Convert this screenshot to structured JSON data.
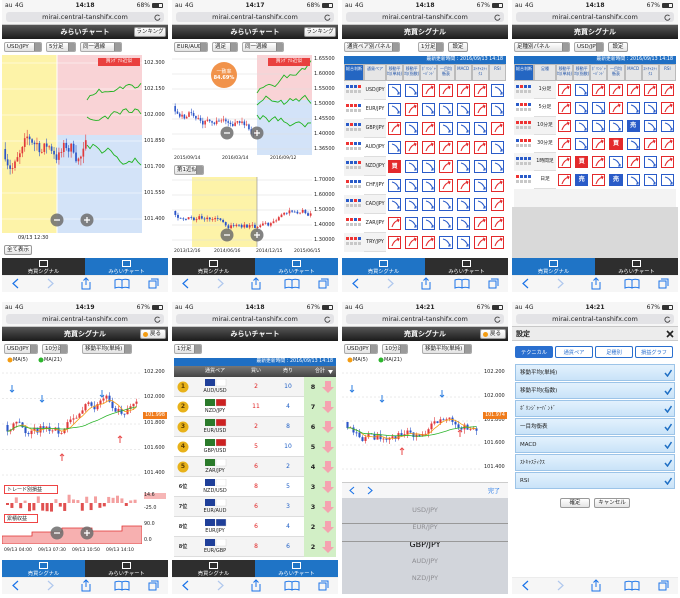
{
  "screens": [
    {
      "status": {
        "carrier": "au",
        "network": "4G",
        "time": "14:18",
        "battery": "68%"
      },
      "url": "mirai.central-tanshifx.com",
      "title": "みらいチャート",
      "button": "ランキング",
      "selects": [
        "USD/JPY",
        "5分足",
        "同一週線"
      ],
      "badge": "買ｼｸﾞﾅﾙ近似",
      "yticks": [
        "102.300",
        "102.150",
        "102.000",
        "101.850",
        "101.700",
        "101.550",
        "101.400"
      ],
      "time_label": "09/13 12:30",
      "show_all": "全て表示",
      "tabs": [
        "売買シグナル",
        "みらいチャート"
      ]
    },
    {
      "status": {
        "carrier": "au",
        "network": "4G",
        "time": "14:17",
        "battery": "68%"
      },
      "url": "mirai.central-tanshifx.com",
      "title": "みらいチャート",
      "button": "ランキング",
      "selects": [
        "EUR/AUD",
        "週足",
        "同一週線"
      ],
      "badge": "買ｼｸﾞﾅﾙ近似",
      "match": [
        "一致率",
        "84.69%"
      ],
      "yticks": [
        "1.65500",
        "1.60000",
        "1.55000",
        "1.50000",
        "1.45500",
        "1.40000",
        "1.36500"
      ],
      "xlabels": [
        "2015/09/14",
        "2016/03/14",
        "2016/09/12"
      ],
      "lower": {
        "select": "第1近似",
        "yticks": [
          "1.70000",
          "1.60000",
          "1.50000",
          "1.40000",
          "1.30000"
        ],
        "xlabels": [
          "2013/12/16",
          "2014/06/16",
          "2014/12/15",
          "2015/06/15"
        ]
      },
      "tabs": [
        "売買シグナル",
        "みらいチャート"
      ]
    },
    {
      "status": {
        "carrier": "au",
        "network": "4G",
        "time": "14:18",
        "battery": "67%"
      },
      "url": "mirai.central-tanshifx.com",
      "title": "売買シグナル",
      "selects": [
        "通貨ペア別パネル",
        "1分足"
      ],
      "settings": "設定",
      "updated": "最新更新時間：2016/09/13 14:18",
      "headers": [
        "総合判断",
        "通貨ペア",
        "移動平均(単純)",
        "移動平均(指数)",
        "ﾎﾞﾘﾝｼﾞｬｰﾊﾞﾝﾄﾞ",
        "一目均衡表",
        "MACD",
        "ｽﾄｷｬｽﾃｨｸｽ",
        "RSI"
      ],
      "rows": [
        {
          "pair": "USD/JPY",
          "cells": [
            null,
            null,
            null,
            null,
            null,
            null,
            null
          ]
        },
        {
          "pair": "EUR/JPY",
          "cells": [
            null,
            null,
            null,
            null,
            null,
            null,
            null
          ]
        },
        {
          "pair": "GBP/JPY",
          "cells": [
            null,
            null,
            null,
            null,
            null,
            null,
            null
          ]
        },
        {
          "pair": "AUD/JPY",
          "cells": [
            null,
            null,
            null,
            null,
            null,
            null,
            null
          ]
        },
        {
          "pair": "NZD/JPY",
          "cells": [
            "買",
            null,
            null,
            null,
            null,
            null,
            null
          ]
        },
        {
          "pair": "CHF/JPY",
          "cells": [
            null,
            null,
            null,
            null,
            null,
            null,
            null
          ]
        },
        {
          "pair": "CAD/JPY",
          "cells": [
            null,
            null,
            null,
            null,
            null,
            null,
            null
          ]
        },
        {
          "pair": "ZAR/JPY",
          "cells": [
            null,
            null,
            null,
            null,
            null,
            null,
            null
          ]
        },
        {
          "pair": "TRY/JPY",
          "cells": [
            null,
            null,
            null,
            null,
            null,
            null,
            null
          ]
        }
      ],
      "tabs": [
        "売買シグナル",
        "みらいチャート"
      ]
    },
    {
      "status": {
        "carrier": "au",
        "network": "4G",
        "time": "14:18",
        "battery": "67%"
      },
      "url": "mirai.central-tanshifx.com",
      "title": "売買シグナル",
      "selects": [
        "足種別パネル",
        "USD/JPY"
      ],
      "settings": "設定",
      "updated": "最新更新時間：2016/09/13 14:18",
      "headers": [
        "総合判断",
        "足種",
        "移動平均(単純)",
        "移動平均(指数)",
        "ﾎﾞﾘﾝｼﾞｬｰﾊﾞﾝﾄﾞ",
        "一目均衡表",
        "MACD",
        "ｽﾄｷｬｽﾃｨｸｽ",
        "RSI"
      ],
      "rows": [
        {
          "pair": "1分足",
          "cells": [
            null,
            null,
            null,
            null,
            null,
            null,
            null
          ]
        },
        {
          "pair": "5分足",
          "cells": [
            null,
            null,
            null,
            null,
            null,
            null,
            null
          ]
        },
        {
          "pair": "10分足",
          "cells": [
            null,
            null,
            null,
            null,
            "売",
            null,
            null
          ]
        },
        {
          "pair": "30分足",
          "cells": [
            null,
            null,
            null,
            "買",
            null,
            null,
            null
          ]
        },
        {
          "pair": "1時間足",
          "cells": [
            null,
            "買",
            null,
            null,
            null,
            null,
            null
          ]
        },
        {
          "pair": "日足",
          "cells": [
            null,
            "売",
            null,
            "売",
            null,
            null,
            null
          ]
        }
      ],
      "tabs": [
        "売買シグナル",
        "みらいチャート"
      ]
    },
    {
      "status": {
        "carrier": "au",
        "network": "4G",
        "time": "14:19",
        "battery": "67%"
      },
      "url": "mirai.central-tanshifx.com",
      "title": "売買シグナル",
      "back": "戻る",
      "selects": [
        "USD/JPY",
        "10分足",
        "移動平均(単純)"
      ],
      "legend": [
        "MA(5)",
        "MA(21)"
      ],
      "yticks": [
        "102.200",
        "102.000",
        "101.800",
        "101.600",
        "101.400"
      ],
      "price": "101.998",
      "trade": {
        "label": "トレード別損益",
        "ticks": [
          "14.6",
          "-25.0"
        ]
      },
      "cumulative": {
        "label": "累積収益",
        "ticks": [
          "90.0",
          "0.0"
        ]
      },
      "xlabels": [
        "09/13 04:00",
        "09/13 07:30",
        "09/13 10:50",
        "09/13 14:10"
      ],
      "tabs": [
        "売買シグナル",
        "みらいチャート"
      ]
    },
    {
      "status": {
        "carrier": "au",
        "network": "4G",
        "time": "14:18",
        "battery": "67%"
      },
      "url": "mirai.central-tanshifx.com",
      "title": "みらいチャート",
      "selects": [
        "1分足"
      ],
      "updated": "最新更新時間：2016/09/13 14:18",
      "headers": [
        "通貨ペア",
        "買い",
        "売り",
        "合計"
      ],
      "rows": [
        {
          "rank": "1",
          "pair": "AUD/USD",
          "buy": "2",
          "sell": "10",
          "total": "8"
        },
        {
          "rank": "2",
          "pair": "NZD/JPY",
          "buy": "11",
          "sell": "4",
          "total": "7"
        },
        {
          "rank": "3",
          "pair": "EUR/USD",
          "buy": "2",
          "sell": "8",
          "total": "6"
        },
        {
          "rank": "4",
          "pair": "GBP/USD",
          "buy": "5",
          "sell": "10",
          "total": "5"
        },
        {
          "rank": "5",
          "pair": "ZAR/JPY",
          "buy": "6",
          "sell": "2",
          "total": "4"
        },
        {
          "rank": "6位",
          "pair": "NZD/USD",
          "buy": "8",
          "sell": "5",
          "total": "3"
        },
        {
          "rank": "7位",
          "pair": "EUR/AUD",
          "buy": "6",
          "sell": "3",
          "total": "3"
        },
        {
          "rank": "8位",
          "pair": "EUR/JPY",
          "buy": "6",
          "sell": "4",
          "total": "2"
        },
        {
          "rank": "8位",
          "pair": "EUR/GBP",
          "buy": "8",
          "sell": "6",
          "total": "2"
        }
      ],
      "tabs": [
        "売買シグナル",
        "みらいチャート"
      ]
    },
    {
      "status": {
        "carrier": "au",
        "network": "4G",
        "time": "14:21",
        "battery": "67%"
      },
      "url": "mirai.central-tanshifx.com",
      "title": "売買シグナル",
      "back": "戻る",
      "selects": [
        "USD/JPY",
        "10分足",
        "移動平均(単純)"
      ],
      "legend": [
        "MA(5)",
        "MA(21)"
      ],
      "yticks": [
        "102.200",
        "102.000",
        "101.800",
        "101.600",
        "101.400"
      ],
      "price": "101.974",
      "done": "完了",
      "options": [
        "USD/JPY",
        "EUR/JPY",
        "GBP/JPY",
        "AUD/JPY",
        "NZD/JPY"
      ]
    },
    {
      "status": {
        "carrier": "au",
        "network": "4G",
        "time": "14:21",
        "battery": "67%"
      },
      "url": "mirai.central-tanshifx.com",
      "title": "設定",
      "setting_tabs": [
        "テクニカル",
        "通貨ペア",
        "足種別",
        "損益グラフ"
      ],
      "items": [
        "移動平均(単純)",
        "移動平均(指数)",
        "ﾎﾞﾘﾝｼﾞｬｰﾊﾞﾝﾄﾞ",
        "一目均衡表",
        "MACD",
        "ｽﾄｷｬｽﾃｨｸｽ",
        "RSI"
      ],
      "buttons": [
        "確定",
        "キャンセル"
      ]
    }
  ]
}
